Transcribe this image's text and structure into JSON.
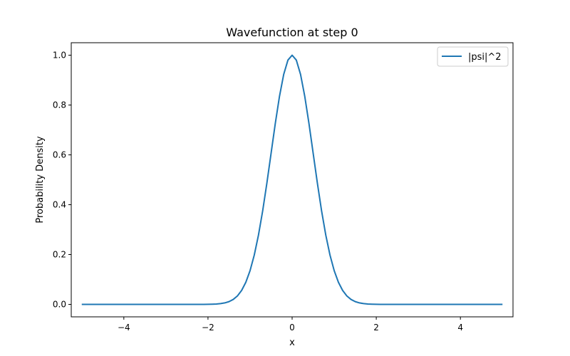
{
  "chart_data": {
    "type": "line",
    "title": "Wavefunction at step 0",
    "xlabel": "x",
    "ylabel": "Probability Density",
    "xlim": [
      -5.25,
      5.25
    ],
    "ylim": [
      -0.05,
      1.05
    ],
    "xticks": [
      -4,
      -2,
      0,
      2,
      4
    ],
    "xtick_labels": [
      "−4",
      "−2",
      "0",
      "2",
      "4"
    ],
    "yticks": [
      0.0,
      0.2,
      0.4,
      0.6,
      0.8,
      1.0
    ],
    "ytick_labels": [
      "0.0",
      "0.2",
      "0.4",
      "0.6",
      "0.8",
      "1.0"
    ],
    "grid": false,
    "legend_position": "top-right",
    "series": [
      {
        "name": "|psi|^2",
        "color": "#1f77b4",
        "x": [
          -5.0,
          -4.9,
          -4.8,
          -4.7,
          -4.6,
          -4.5,
          -4.4,
          -4.3,
          -4.2,
          -4.1,
          -4.0,
          -3.9,
          -3.8,
          -3.7,
          -3.6,
          -3.5,
          -3.4,
          -3.3,
          -3.2,
          -3.1,
          -3.0,
          -2.9,
          -2.8,
          -2.7,
          -2.6,
          -2.5,
          -2.4,
          -2.3,
          -2.2,
          -2.1,
          -2.0,
          -1.9,
          -1.8,
          -1.7,
          -1.6,
          -1.5,
          -1.4,
          -1.3,
          -1.2,
          -1.1,
          -1.0,
          -0.9,
          -0.8,
          -0.7,
          -0.6,
          -0.5,
          -0.4,
          -0.3,
          -0.2,
          -0.1,
          0.0,
          0.1,
          0.2,
          0.3,
          0.4,
          0.5,
          0.6,
          0.7,
          0.8,
          0.9,
          1.0,
          1.1,
          1.2,
          1.3,
          1.4,
          1.5,
          1.6,
          1.7,
          1.8,
          1.9,
          2.0,
          2.1,
          2.2,
          2.3,
          2.4,
          2.5,
          2.6,
          2.7,
          2.8,
          2.9,
          3.0,
          3.1,
          3.2,
          3.3,
          3.4,
          3.5,
          3.6,
          3.7,
          3.8,
          3.9,
          4.0,
          4.1,
          4.2,
          4.3,
          4.4,
          4.5,
          4.6,
          4.7,
          4.8,
          4.9,
          5.0
        ],
        "values": [
          0.0,
          0.0,
          0.0,
          0.0,
          0.0,
          0.0,
          0.0,
          0.0,
          0.0,
          0.0,
          0.0,
          0.0,
          0.0,
          0.0,
          0.0,
          0.0,
          0.0,
          0.0,
          0.0,
          0.0,
          0.0,
          0.0,
          0.0,
          0.0,
          0.0,
          0.0,
          0.0,
          0.0,
          0.0001,
          0.0001,
          0.0003,
          0.0007,
          0.0015,
          0.0031,
          0.006,
          0.0111,
          0.0198,
          0.034,
          0.0561,
          0.0889,
          0.1353,
          0.1979,
          0.278,
          0.3753,
          0.4868,
          0.6065,
          0.7261,
          0.8353,
          0.9231,
          0.9802,
          1.0,
          0.9802,
          0.9231,
          0.8353,
          0.7261,
          0.6065,
          0.4868,
          0.3753,
          0.278,
          0.1979,
          0.1353,
          0.0889,
          0.0561,
          0.034,
          0.0198,
          0.0111,
          0.006,
          0.0031,
          0.0015,
          0.0007,
          0.0003,
          0.0001,
          0.0001,
          0.0,
          0.0,
          0.0,
          0.0,
          0.0,
          0.0,
          0.0,
          0.0,
          0.0,
          0.0,
          0.0,
          0.0,
          0.0,
          0.0,
          0.0,
          0.0,
          0.0,
          0.0,
          0.0,
          0.0,
          0.0,
          0.0,
          0.0,
          0.0,
          0.0,
          0.0,
          0.0,
          0.0
        ]
      }
    ]
  }
}
